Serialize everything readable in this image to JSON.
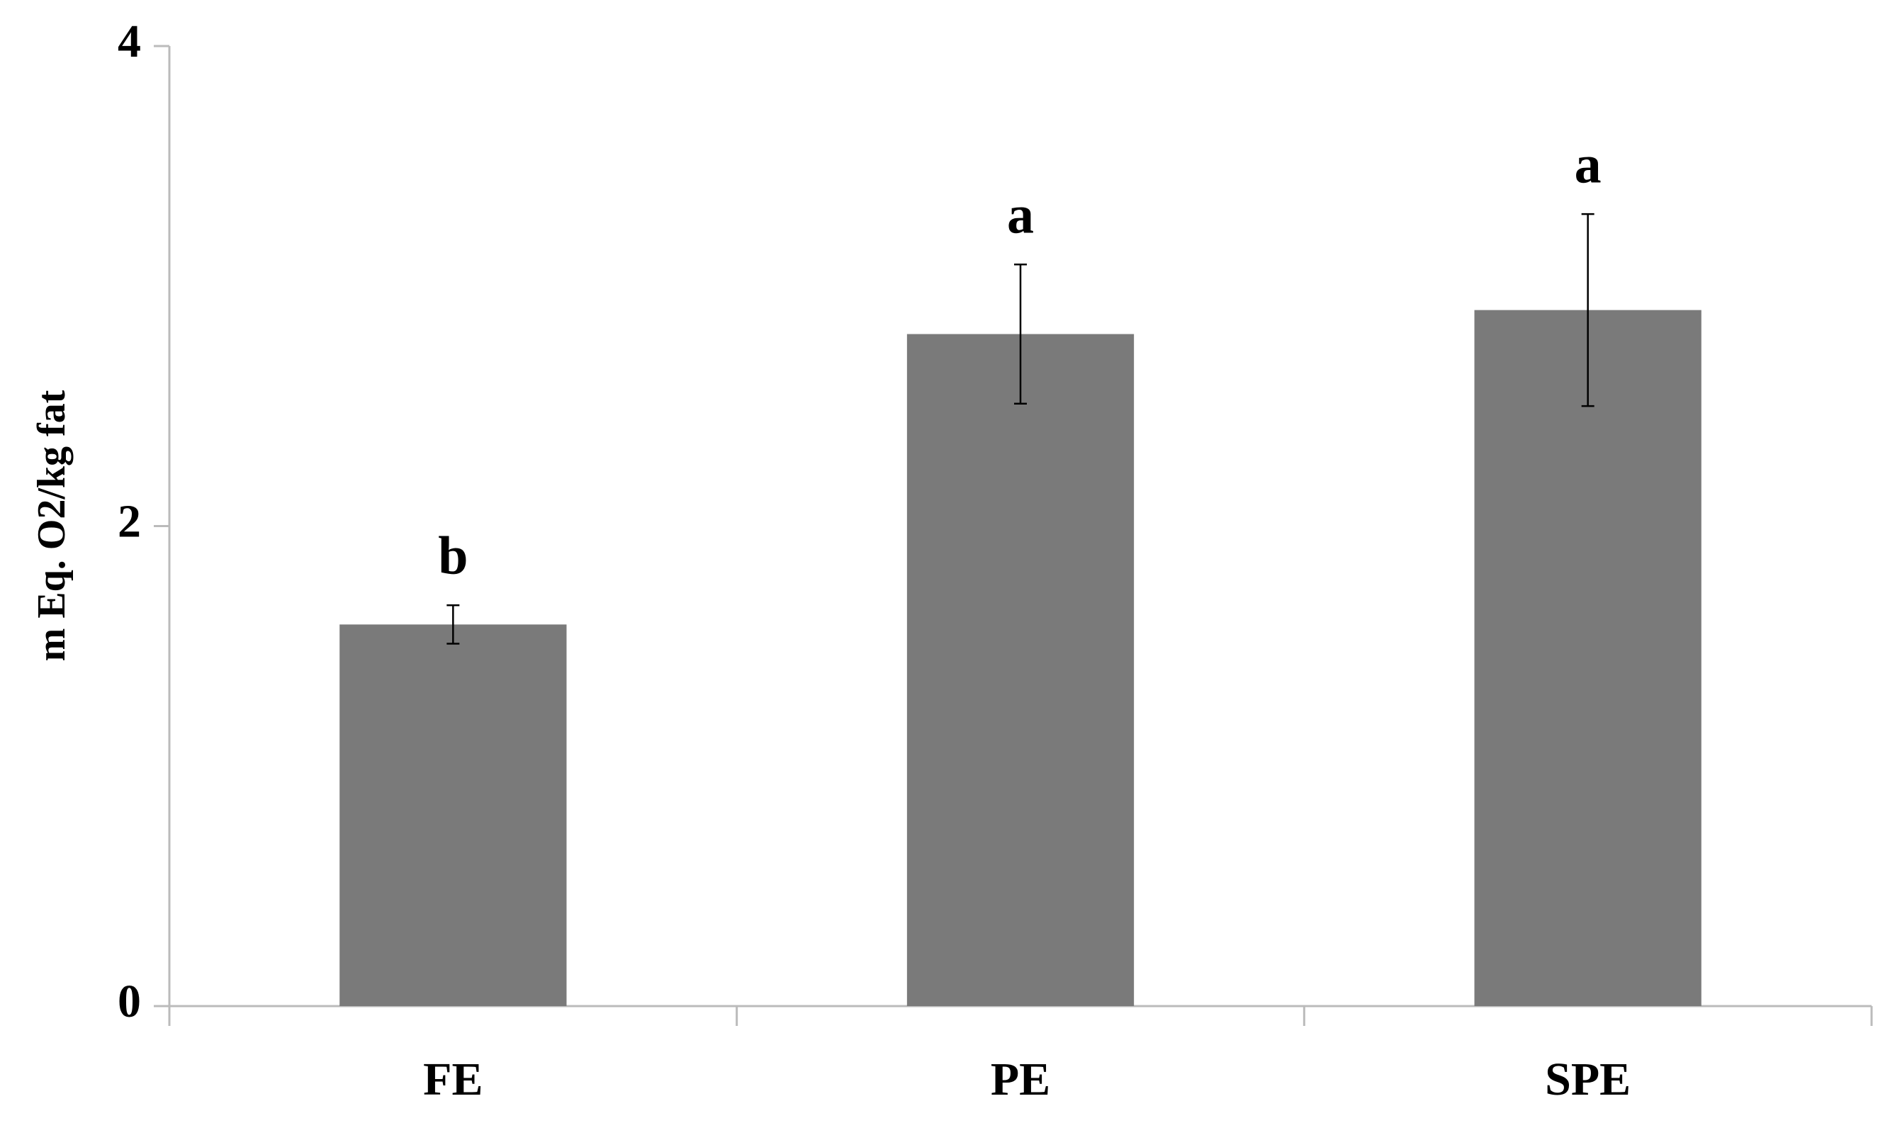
{
  "chart_data": {
    "type": "bar",
    "y_label": "m Eq. O2/kg fat",
    "categories": [
      "FE",
      "PE",
      "SPE"
    ],
    "values": [
      1.59,
      2.8,
      2.9
    ],
    "errors": [
      0.08,
      0.29,
      0.4
    ],
    "annotations": [
      "b",
      "a",
      "a"
    ],
    "color": "#7a7a7a",
    "ylim": [
      0,
      4
    ],
    "yticks": [
      0,
      2,
      4
    ],
    "grid": false
  }
}
